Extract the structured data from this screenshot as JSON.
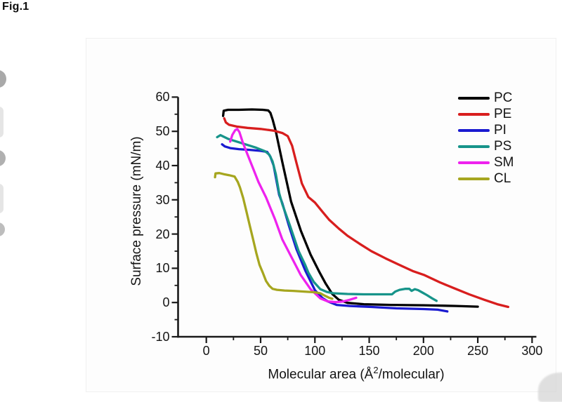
{
  "figure_label": "Fig.1",
  "chart_data": {
    "type": "line",
    "title": "",
    "xlabel_prefix": "Molecular area (Å",
    "xlabel_sup": "2",
    "xlabel_suffix": "/molecular)",
    "ylabel": "Surface pressure (mN/m)",
    "xlim": [
      -26,
      302
    ],
    "ylim": [
      -10,
      60
    ],
    "xticks": [
      0,
      50,
      100,
      150,
      200,
      250,
      300
    ],
    "xticks_minor": [
      25,
      75,
      125,
      175,
      225,
      275
    ],
    "yticks": [
      -10,
      0,
      10,
      20,
      30,
      40,
      50,
      60
    ],
    "yticks_minor": [
      -5,
      5,
      15,
      25,
      35,
      45,
      55
    ],
    "grid": false,
    "legend_position": "top-right",
    "axis_color": "#1a1a1a",
    "series": [
      {
        "name": "PC",
        "color": "#000000",
        "points": [
          [
            15.5,
            54.5
          ],
          [
            16,
            56
          ],
          [
            20,
            56.3
          ],
          [
            30,
            56.3
          ],
          [
            42,
            56.4
          ],
          [
            52,
            56.3
          ],
          [
            57,
            56.1
          ],
          [
            59,
            55.4
          ],
          [
            61,
            53.5
          ],
          [
            64,
            50
          ],
          [
            70,
            41
          ],
          [
            78,
            29.5
          ],
          [
            87,
            21
          ],
          [
            96,
            14
          ],
          [
            104,
            9
          ],
          [
            110,
            5.5
          ],
          [
            116,
            2.5
          ],
          [
            122,
            0.8
          ],
          [
            130,
            -0.1
          ],
          [
            145,
            -0.5
          ],
          [
            170,
            -0.7
          ],
          [
            200,
            -0.8
          ],
          [
            230,
            -1
          ],
          [
            250,
            -1.2
          ]
        ]
      },
      {
        "name": "PE",
        "color": "#d81e1e",
        "points": [
          [
            16.5,
            53.8
          ],
          [
            18,
            52.6
          ],
          [
            21,
            51.9
          ],
          [
            28,
            51.4
          ],
          [
            38,
            51
          ],
          [
            50,
            50.7
          ],
          [
            62,
            50.2
          ],
          [
            70,
            49.5
          ],
          [
            75,
            48.6
          ],
          [
            79,
            45.8
          ],
          [
            83,
            40.8
          ],
          [
            88,
            34.8
          ],
          [
            94,
            30.8
          ],
          [
            100,
            29.2
          ],
          [
            107,
            26.5
          ],
          [
            113,
            24.2
          ],
          [
            122,
            21.6
          ],
          [
            130,
            19.5
          ],
          [
            141,
            17.2
          ],
          [
            152,
            15
          ],
          [
            165,
            12.9
          ],
          [
            177,
            11.1
          ],
          [
            190,
            9.2
          ],
          [
            201,
            8
          ],
          [
            215,
            5.9
          ],
          [
            228,
            4.2
          ],
          [
            242,
            2.4
          ],
          [
            256,
            0.8
          ],
          [
            268,
            -0.5
          ],
          [
            278,
            -1.3
          ]
        ]
      },
      {
        "name": "PI",
        "color": "#1a1ad0",
        "points": [
          [
            14.5,
            46.2
          ],
          [
            17,
            45.6
          ],
          [
            22,
            45.1
          ],
          [
            30,
            44.8
          ],
          [
            40,
            44.6
          ],
          [
            50,
            44.3
          ],
          [
            56,
            44
          ],
          [
            59,
            42.6
          ],
          [
            62,
            40
          ],
          [
            67,
            31.5
          ],
          [
            70,
            29
          ],
          [
            76,
            22.5
          ],
          [
            83,
            15.6
          ],
          [
            91,
            9.4
          ],
          [
            100,
            3.6
          ],
          [
            107,
            1.3
          ],
          [
            112,
            0.3
          ],
          [
            120,
            -0.7
          ],
          [
            132,
            -1
          ],
          [
            152,
            -1.3
          ],
          [
            175,
            -1.7
          ],
          [
            200,
            -1.9
          ],
          [
            213,
            -2.1
          ],
          [
            222,
            -2.6
          ]
        ]
      },
      {
        "name": "PS",
        "color": "#17948a",
        "points": [
          [
            10,
            48.3
          ],
          [
            13,
            48.9
          ],
          [
            20,
            47.8
          ],
          [
            28,
            47
          ],
          [
            37,
            46.1
          ],
          [
            46,
            45.2
          ],
          [
            54,
            44.2
          ],
          [
            58,
            43.2
          ],
          [
            61,
            41.2
          ],
          [
            64,
            37.5
          ],
          [
            67,
            32
          ],
          [
            70,
            28.7
          ],
          [
            77,
            22.5
          ],
          [
            85,
            15
          ],
          [
            91,
            11
          ],
          [
            94,
            8.7
          ],
          [
            99,
            6
          ],
          [
            105,
            3.9
          ],
          [
            111,
            3.1
          ],
          [
            117,
            2.7
          ],
          [
            130,
            2.5
          ],
          [
            145,
            2.4
          ],
          [
            160,
            2.4
          ],
          [
            171,
            2.4
          ],
          [
            174,
            3.2
          ],
          [
            178,
            3.7
          ],
          [
            183,
            4
          ],
          [
            187,
            4
          ],
          [
            189,
            3.4
          ],
          [
            192,
            3.9
          ],
          [
            195,
            3.6
          ],
          [
            199,
            2.9
          ],
          [
            203,
            2.2
          ],
          [
            208,
            1.2
          ],
          [
            212,
            0.5
          ]
        ]
      },
      {
        "name": "SM",
        "color": "#ee22ee",
        "points": [
          [
            22,
            47
          ],
          [
            24,
            49
          ],
          [
            26.5,
            50.3
          ],
          [
            28.5,
            50.7
          ],
          [
            30.5,
            49.8
          ],
          [
            33.5,
            46.8
          ],
          [
            38,
            43.2
          ],
          [
            43,
            39.2
          ],
          [
            48,
            35.2
          ],
          [
            55,
            30.7
          ],
          [
            63,
            24.5
          ],
          [
            70,
            18.4
          ],
          [
            79,
            12.9
          ],
          [
            87,
            8
          ],
          [
            96,
            3.9
          ],
          [
            105,
            1.2
          ],
          [
            112,
            0.3
          ],
          [
            119,
            0.1
          ],
          [
            126,
            0.3
          ],
          [
            132,
            0.8
          ],
          [
            138,
            1.4
          ]
        ]
      },
      {
        "name": "CL",
        "color": "#a6a61f",
        "points": [
          [
            8,
            36.6
          ],
          [
            8.5,
            37.7
          ],
          [
            12,
            37.8
          ],
          [
            16,
            37.5
          ],
          [
            21,
            37.2
          ],
          [
            26,
            36.8
          ],
          [
            29,
            35.2
          ],
          [
            31,
            33.6
          ],
          [
            34,
            30.5
          ],
          [
            37,
            26.5
          ],
          [
            40,
            22.5
          ],
          [
            43,
            18.5
          ],
          [
            46,
            14.5
          ],
          [
            49,
            11
          ],
          [
            52,
            8.7
          ],
          [
            55,
            6.3
          ],
          [
            58,
            4.9
          ],
          [
            61,
            4
          ],
          [
            65,
            3.7
          ],
          [
            72,
            3.5
          ],
          [
            80,
            3.4
          ],
          [
            90,
            3.2
          ],
          [
            100,
            3
          ],
          [
            105,
            2.7
          ],
          [
            109,
            2
          ],
          [
            113,
            1.4
          ],
          [
            116,
            1.1
          ]
        ]
      }
    ]
  }
}
